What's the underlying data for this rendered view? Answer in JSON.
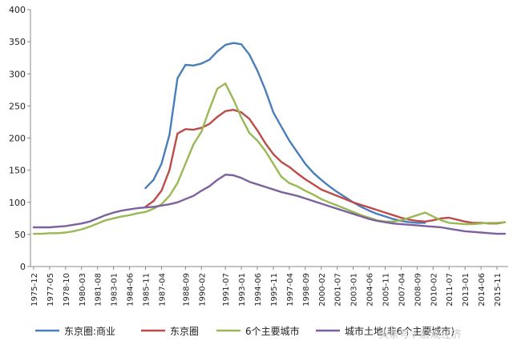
{
  "chart_data": {
    "type": "line",
    "title": "",
    "xlabel": "",
    "ylabel": "",
    "ylim": [
      0,
      400
    ],
    "yticks": [
      0,
      50,
      100,
      150,
      200,
      250,
      300,
      350,
      400
    ],
    "grid": false,
    "legend_position": "bottom",
    "x": [
      "1975-12",
      "1976-12",
      "1977-05",
      "1977-12",
      "1978-10",
      "1979-09",
      "1980-03",
      "1980-12",
      "1981-08",
      "1982-06",
      "1983-01",
      "1983-10",
      "1984-06",
      "1985-03",
      "1985-11",
      "1986-06",
      "1987-04",
      "1987-10",
      "1988-04",
      "1988-09",
      "1989-03",
      "1990-02",
      "1990-09",
      "1991-03",
      "1991-07",
      "1992-03",
      "1993-01",
      "1993-08",
      "1994-06",
      "1995-03",
      "1995-11",
      "1996-08",
      "1997-04",
      "1998-01",
      "1998-09",
      "1999-05",
      "2000-02",
      "2000-11",
      "2001-07",
      "2002-04",
      "2003-01",
      "2003-10",
      "2004-06",
      "2005-03",
      "2005-11",
      "2006-08",
      "2007-04",
      "2008-01",
      "2008-09",
      "2009-05",
      "2010-02",
      "2010-11",
      "2011-07",
      "2012-04",
      "2013-01",
      "2013-10",
      "2014-06",
      "2015-03",
      "2015-11",
      "2016-06"
    ],
    "x_tick_labels": [
      "1975-12",
      "1977-05",
      "1978-10",
      "1980-03",
      "1981-08",
      "1983-01",
      "1984-06",
      "1985-11",
      "1987-04",
      "1988-09",
      "1990-02",
      "1991-07",
      "1993-01",
      "1994-06",
      "1995-11",
      "1997-04",
      "1998-09",
      "2000-02",
      "2001-07",
      "2003-01",
      "2004-06",
      "2005-11",
      "2007-04",
      "2008-09",
      "2010-02",
      "2011-07",
      "2013-01",
      "2014-06",
      "2015-11"
    ],
    "series": [
      {
        "name": "东京圈:商业",
        "color": "#4a7ebb",
        "values": [
          null,
          null,
          null,
          null,
          null,
          null,
          null,
          null,
          null,
          null,
          null,
          null,
          null,
          null,
          122,
          135,
          160,
          205,
          293,
          314,
          313,
          316,
          322,
          335,
          345,
          348,
          346,
          330,
          305,
          275,
          240,
          218,
          196,
          178,
          160,
          146,
          135,
          125,
          116,
          108,
          100,
          93,
          87,
          82,
          78,
          74,
          71,
          69,
          68,
          68,
          null,
          null,
          null,
          null,
          null,
          null,
          null,
          null,
          null,
          null
        ]
      },
      {
        "name": "东京圈",
        "color": "#be4b48",
        "values": [
          null,
          null,
          null,
          null,
          null,
          null,
          null,
          null,
          null,
          null,
          null,
          null,
          null,
          null,
          93,
          102,
          118,
          150,
          207,
          214,
          213,
          216,
          222,
          233,
          242,
          244,
          240,
          230,
          212,
          192,
          175,
          163,
          155,
          145,
          136,
          128,
          120,
          115,
          110,
          105,
          100,
          96,
          92,
          88,
          84,
          80,
          76,
          73,
          71,
          70,
          72,
          75,
          76,
          73,
          70,
          68,
          68,
          67,
          67,
          69
        ]
      },
      {
        "name": "6个主要城市",
        "color": "#98b954",
        "values": [
          51,
          51,
          52,
          52,
          53,
          55,
          58,
          62,
          67,
          72,
          75,
          78,
          80,
          83,
          85,
          90,
          97,
          110,
          130,
          160,
          190,
          210,
          245,
          277,
          285,
          260,
          232,
          208,
          196,
          180,
          160,
          140,
          130,
          125,
          118,
          112,
          105,
          100,
          95,
          90,
          85,
          80,
          76,
          72,
          70,
          70,
          72,
          76,
          80,
          84,
          78,
          72,
          68,
          67,
          66,
          66,
          67,
          68,
          68,
          69
        ]
      },
      {
        "name": "城市土地(非6个主要城市)",
        "color": "#7d60a0",
        "values": [
          61,
          61,
          61,
          62,
          63,
          65,
          67,
          70,
          75,
          80,
          84,
          87,
          89,
          91,
          92,
          93,
          95,
          97,
          100,
          105,
          110,
          118,
          125,
          135,
          143,
          142,
          138,
          132,
          128,
          124,
          120,
          116,
          113,
          110,
          106,
          102,
          98,
          94,
          90,
          86,
          82,
          78,
          74,
          71,
          69,
          67,
          66,
          65,
          64,
          63,
          62,
          61,
          59,
          57,
          55,
          54,
          53,
          52,
          51,
          51
        ]
      }
    ]
  },
  "watermark": "头条号 / 宏观经济"
}
